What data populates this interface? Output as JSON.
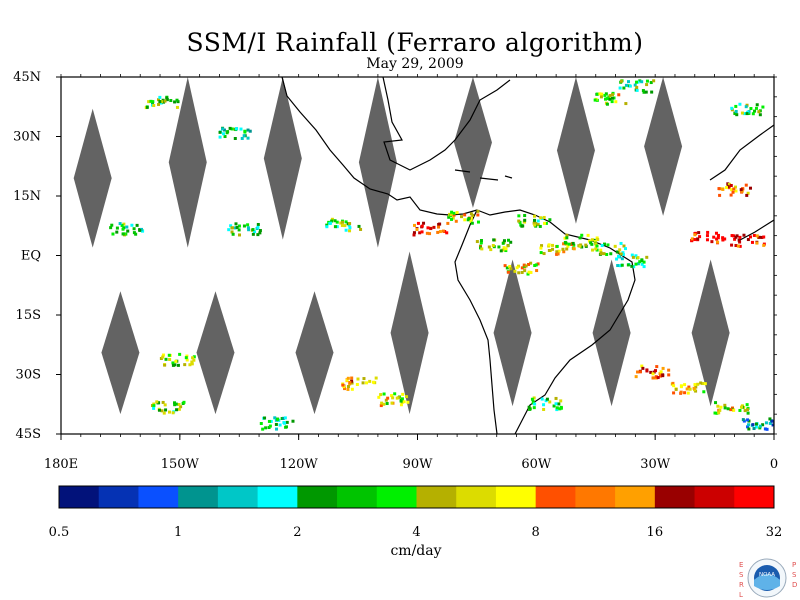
{
  "chart_data": {
    "type": "heatmap",
    "title": "SSM/I Rainfall (Ferraro algorithm)",
    "subtitle": "May 29, 2009",
    "x_ticks": [
      "180E",
      "150W",
      "120W",
      "90W",
      "60W",
      "30W",
      "0"
    ],
    "y_ticks": [
      "45N",
      "30N",
      "15N",
      "EQ",
      "15S",
      "30S",
      "45S"
    ],
    "xlim": [
      -180,
      0
    ],
    "ylim": [
      -45,
      45
    ],
    "colorbar": {
      "unit": "cm/day",
      "tick_labels": [
        "0.5",
        "1",
        "2",
        "4",
        "8",
        "16",
        "32"
      ],
      "colors": [
        "#02127a",
        "#0532b4",
        "#0a50ff",
        "#00948f",
        "#00c7c7",
        "#00ffff",
        "#009800",
        "#00c400",
        "#00f000",
        "#b5b000",
        "#dcdc00",
        "#ffff00",
        "#ff5000",
        "#ff7800",
        "#ffa000",
        "#990000",
        "#cc0000",
        "#ff0000"
      ]
    },
    "missing_data_color": "#636363",
    "swath_gaps_deg": [
      {
        "lon_center": -172,
        "lat_top": 37,
        "lat_bottom": 2
      },
      {
        "lon_center": -148,
        "lat_top": 45,
        "lat_bottom": 2
      },
      {
        "lon_center": -124,
        "lat_top": 45,
        "lat_bottom": 4
      },
      {
        "lon_center": -100,
        "lat_top": 45,
        "lat_bottom": 2
      },
      {
        "lon_center": -76,
        "lat_top": 45,
        "lat_bottom": 12
      },
      {
        "lon_center": -50,
        "lat_top": 45,
        "lat_bottom": 8
      },
      {
        "lon_center": -28,
        "lat_top": 45,
        "lat_bottom": 10
      },
      {
        "lon_center": -165,
        "lat_top": -9,
        "lat_bottom": -40
      },
      {
        "lon_center": -141,
        "lat_top": -9,
        "lat_bottom": -40
      },
      {
        "lon_center": -116,
        "lat_top": -9,
        "lat_bottom": -40
      },
      {
        "lon_center": -92,
        "lat_top": 1,
        "lat_bottom": -40
      },
      {
        "lon_center": -66,
        "lat_top": -1,
        "lat_bottom": -38
      },
      {
        "lon_center": -41,
        "lat_top": -1,
        "lat_bottom": -38
      },
      {
        "lon_center": -16,
        "lat_top": -1,
        "lat_bottom": -38
      }
    ],
    "rain_clusters_deg": [
      {
        "lon": -155,
        "lat": 39,
        "level": 8
      },
      {
        "lon": -136,
        "lat": 31,
        "level": 6
      },
      {
        "lon": -164,
        "lat": 7,
        "level": 7
      },
      {
        "lon": -134,
        "lat": 7,
        "level": 7
      },
      {
        "lon": -109,
        "lat": 8,
        "level": 8
      },
      {
        "lon": -87,
        "lat": 7,
        "level": 16
      },
      {
        "lon": -79,
        "lat": 10,
        "level": 10
      },
      {
        "lon": -71,
        "lat": 3,
        "level": 9
      },
      {
        "lon": -64,
        "lat": -3,
        "level": 10
      },
      {
        "lon": -55,
        "lat": 2,
        "level": 11
      },
      {
        "lon": -49,
        "lat": 4,
        "level": 9
      },
      {
        "lon": -42,
        "lat": 2,
        "level": 8
      },
      {
        "lon": -36,
        "lat": -1,
        "level": 7
      },
      {
        "lon": -17,
        "lat": 5,
        "level": 17
      },
      {
        "lon": -7,
        "lat": 4,
        "level": 17
      },
      {
        "lon": -10,
        "lat": 17,
        "level": 13
      },
      {
        "lon": -42,
        "lat": 40,
        "level": 9
      },
      {
        "lon": -35,
        "lat": 43,
        "level": 7
      },
      {
        "lon": -7,
        "lat": 37,
        "level": 7
      },
      {
        "lon": -151,
        "lat": -26,
        "level": 9
      },
      {
        "lon": -153,
        "lat": -38,
        "level": 8
      },
      {
        "lon": -126,
        "lat": -42,
        "level": 6
      },
      {
        "lon": -105,
        "lat": -32,
        "level": 12
      },
      {
        "lon": -97,
        "lat": -36,
        "level": 10
      },
      {
        "lon": -58,
        "lat": -37,
        "level": 8
      },
      {
        "lon": -31,
        "lat": -29,
        "level": 14
      },
      {
        "lon": -22,
        "lat": -33,
        "level": 11
      },
      {
        "lon": -11,
        "lat": -38,
        "level": 10
      },
      {
        "lon": -4,
        "lat": -42,
        "level": 4
      },
      {
        "lon": -61,
        "lat": 9,
        "level": 8
      }
    ]
  },
  "logo": {
    "left_letters": "E S R L",
    "right_letters": "P S D",
    "seal_text": "NOAA"
  }
}
